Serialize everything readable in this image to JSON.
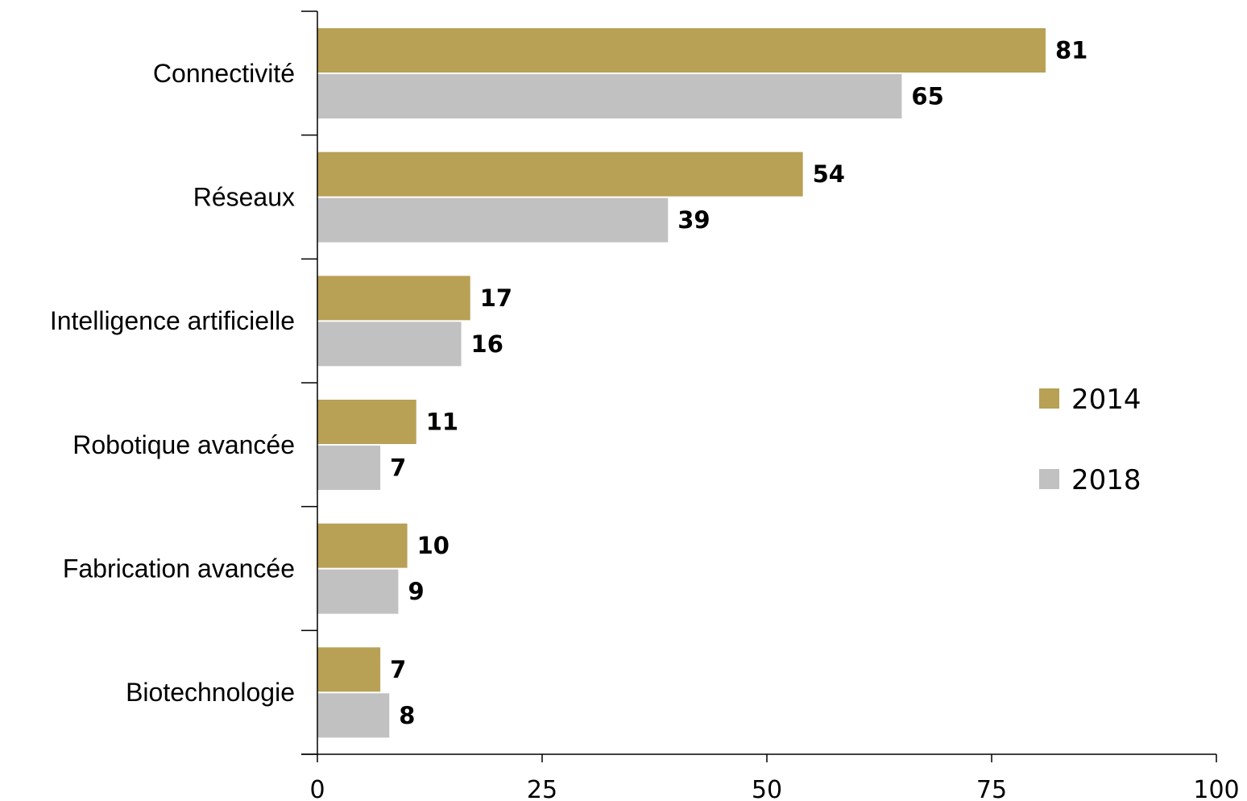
{
  "chart_data": {
    "type": "bar",
    "orientation": "horizontal",
    "categories": [
      "Connectivité",
      "Réseaux",
      "Intelligence artificielle",
      "Robotique avancée",
      "Fabrication avancée",
      "Biotechnologie"
    ],
    "series": [
      {
        "name": "2014",
        "color": "#b8a055",
        "values": [
          81,
          54,
          17,
          11,
          10,
          7
        ]
      },
      {
        "name": "2018",
        "color": "#c1c1c1",
        "values": [
          65,
          39,
          16,
          7,
          9,
          8
        ]
      }
    ],
    "xlim": [
      0,
      100
    ],
    "xticks": [
      "0",
      "25",
      "50",
      "75",
      "100"
    ],
    "title": "",
    "xlabel": "",
    "ylabel": "",
    "grid": false,
    "legend_position": "right"
  }
}
